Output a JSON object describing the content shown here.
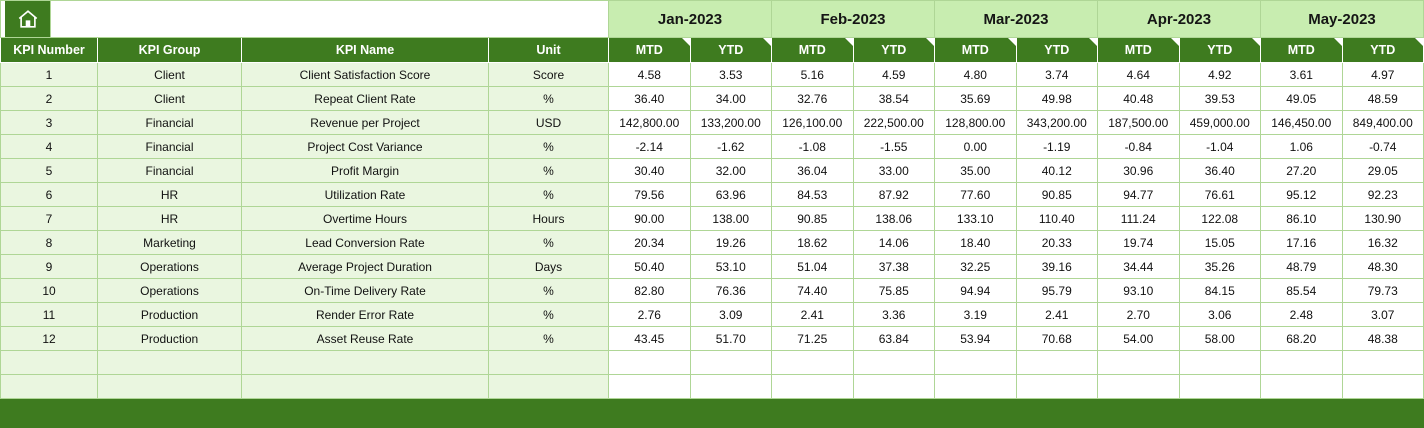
{
  "theme": {
    "dark_green": "#3E7B1F",
    "light_green": "#C8EDB0",
    "row_tint": "#EAF6E0",
    "grid_line": "#AFD696"
  },
  "toolbar": {
    "home_icon": "home-icon"
  },
  "table": {
    "months": [
      "Jan-2023",
      "Feb-2023",
      "Mar-2023",
      "Apr-2023",
      "May-2023"
    ],
    "sub_headers": [
      "MTD",
      "YTD"
    ],
    "left_headers": [
      "KPI Number",
      "KPI Group",
      "KPI Name",
      "Unit"
    ],
    "rows": [
      {
        "number": "1",
        "group": "Client",
        "name": "Client Satisfaction Score",
        "unit": "Score",
        "values": [
          "4.58",
          "3.53",
          "5.16",
          "4.59",
          "4.80",
          "3.74",
          "4.64",
          "4.92",
          "3.61",
          "4.97"
        ]
      },
      {
        "number": "2",
        "group": "Client",
        "name": "Repeat Client Rate",
        "unit": "%",
        "values": [
          "36.40",
          "34.00",
          "32.76",
          "38.54",
          "35.69",
          "49.98",
          "40.48",
          "39.53",
          "49.05",
          "48.59"
        ]
      },
      {
        "number": "3",
        "group": "Financial",
        "name": "Revenue per Project",
        "unit": "USD",
        "values": [
          "142,800.00",
          "133,200.00",
          "126,100.00",
          "222,500.00",
          "128,800.00",
          "343,200.00",
          "187,500.00",
          "459,000.00",
          "146,450.00",
          "849,400.00"
        ]
      },
      {
        "number": "4",
        "group": "Financial",
        "name": "Project Cost Variance",
        "unit": "%",
        "values": [
          "-2.14",
          "-1.62",
          "-1.08",
          "-1.55",
          "0.00",
          "-1.19",
          "-0.84",
          "-1.04",
          "1.06",
          "-0.74"
        ]
      },
      {
        "number": "5",
        "group": "Financial",
        "name": "Profit Margin",
        "unit": "%",
        "values": [
          "30.40",
          "32.00",
          "36.04",
          "33.00",
          "35.00",
          "40.12",
          "30.96",
          "36.40",
          "27.20",
          "29.05"
        ]
      },
      {
        "number": "6",
        "group": "HR",
        "name": "Utilization Rate",
        "unit": "%",
        "values": [
          "79.56",
          "63.96",
          "84.53",
          "87.92",
          "77.60",
          "90.85",
          "94.77",
          "76.61",
          "95.12",
          "92.23"
        ]
      },
      {
        "number": "7",
        "group": "HR",
        "name": "Overtime Hours",
        "unit": "Hours",
        "values": [
          "90.00",
          "138.00",
          "90.85",
          "138.06",
          "133.10",
          "110.40",
          "111.24",
          "122.08",
          "86.10",
          "130.90"
        ]
      },
      {
        "number": "8",
        "group": "Marketing",
        "name": "Lead Conversion Rate",
        "unit": "%",
        "values": [
          "20.34",
          "19.26",
          "18.62",
          "14.06",
          "18.40",
          "20.33",
          "19.74",
          "15.05",
          "17.16",
          "16.32"
        ]
      },
      {
        "number": "9",
        "group": "Operations",
        "name": "Average Project Duration",
        "unit": "Days",
        "values": [
          "50.40",
          "53.10",
          "51.04",
          "37.38",
          "32.25",
          "39.16",
          "34.44",
          "35.26",
          "48.79",
          "48.30"
        ]
      },
      {
        "number": "10",
        "group": "Operations",
        "name": "On-Time Delivery Rate",
        "unit": "%",
        "values": [
          "82.80",
          "76.36",
          "74.40",
          "75.85",
          "94.94",
          "95.79",
          "93.10",
          "84.15",
          "85.54",
          "79.73"
        ]
      },
      {
        "number": "11",
        "group": "Production",
        "name": "Render Error Rate",
        "unit": "%",
        "values": [
          "2.76",
          "3.09",
          "2.41",
          "3.36",
          "3.19",
          "2.41",
          "2.70",
          "3.06",
          "2.48",
          "3.07"
        ]
      },
      {
        "number": "12",
        "group": "Production",
        "name": "Asset Reuse Rate",
        "unit": "%",
        "values": [
          "43.45",
          "51.70",
          "71.25",
          "63.84",
          "53.94",
          "70.68",
          "54.00",
          "58.00",
          "68.20",
          "48.38"
        ]
      }
    ],
    "empty_row_count": 2
  }
}
